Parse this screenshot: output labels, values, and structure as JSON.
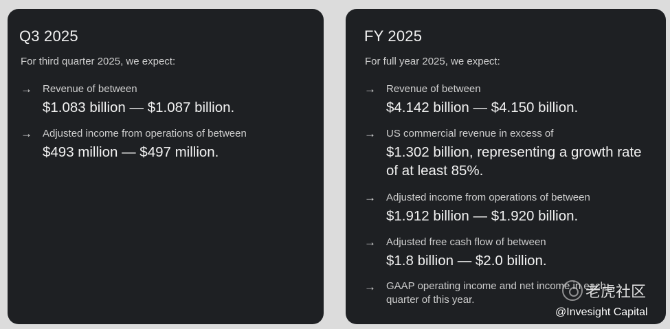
{
  "q3": {
    "title": "Q3 2025",
    "intro": "For third quarter 2025, we expect:",
    "items": [
      {
        "label": "Revenue of between",
        "value": "$1.083 billion — $1.087 billion."
      },
      {
        "label": "Adjusted income from operations of between",
        "value": "$493 million — $497 million."
      }
    ]
  },
  "fy": {
    "title": "FY 2025",
    "intro": "For full year 2025, we expect:",
    "items": [
      {
        "label": "Revenue of between",
        "value": "$4.142 billion — $4.150 billion."
      },
      {
        "label": "US commercial revenue in excess of",
        "value": "$1.302 billion, representing a growth rate of at least 85%."
      },
      {
        "label": "Adjusted income from operations of between",
        "value": "$1.912 billion — $1.920 billion."
      },
      {
        "label": "Adjusted free cash flow of between",
        "value": "$1.8 billion — $2.0 billion."
      },
      {
        "label": "GAAP operating income and net income in each quarter of this year.",
        "value": ""
      }
    ]
  },
  "arrow_glyph": "→",
  "watermark": {
    "logo_icon": "tiger-community-logo-icon",
    "text": "老虎社区"
  },
  "credit": "@Invesight Capital"
}
